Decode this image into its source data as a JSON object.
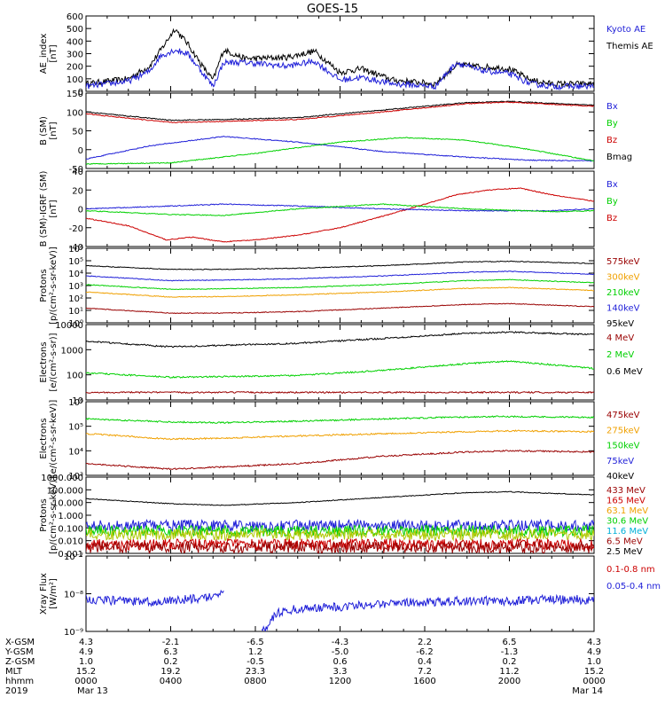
{
  "title": "GOES-15",
  "colors": {
    "axis": "#000000",
    "blue": "#1f1fd8",
    "red": "#cc0000",
    "green": "#00d000",
    "orange": "#f0a000",
    "darkred": "#990000",
    "cyan": "#00b0d8",
    "yellowgreen": "#b0c800",
    "black": "#000000"
  },
  "chart_data": [
    {
      "type": "line",
      "ylabel": [
        "AE_index",
        "[nT]"
      ],
      "ylim": [
        0,
        600
      ],
      "yticks": [
        "0",
        "100",
        "200",
        "300",
        "400",
        "500",
        "600"
      ],
      "legend": [
        {
          "name": "Kyoto AE",
          "color": "blue"
        },
        {
          "name": "Themis AE",
          "color": "black"
        }
      ],
      "series": [
        {
          "name": "Themis AE",
          "color": "black",
          "x": [
            0,
            2,
            3,
            3.5,
            4.2,
            4.8,
            5.5,
            6.0,
            6.5,
            7.5,
            9.5,
            10.8,
            12,
            13,
            14.5,
            16.5,
            17.5,
            18.5,
            20,
            21,
            22,
            24
          ],
          "y": [
            60,
            100,
            200,
            320,
            500,
            380,
            200,
            90,
            330,
            260,
            270,
            320,
            150,
            180,
            90,
            60,
            210,
            200,
            180,
            90,
            60,
            60
          ]
        },
        {
          "name": "Kyoto AE",
          "color": "blue",
          "x": [
            0,
            2,
            3,
            3.5,
            4.2,
            4.8,
            5.5,
            6.0,
            6.5,
            7.5,
            9.5,
            10.8,
            12,
            13,
            14.5,
            16.5,
            17.5,
            18.5,
            20,
            21,
            22,
            24
          ],
          "y": [
            40,
            80,
            160,
            280,
            330,
            300,
            150,
            40,
            230,
            230,
            200,
            240,
            90,
            110,
            60,
            40,
            230,
            170,
            140,
            60,
            40,
            40
          ]
        }
      ]
    },
    {
      "type": "line",
      "ylabel": [
        "B (SM)",
        "[nT]"
      ],
      "ylim": [
        -50,
        150
      ],
      "yticks": [
        "-50",
        "0",
        "50",
        "100",
        "150"
      ],
      "legend": [
        {
          "name": "Bx",
          "color": "blue"
        },
        {
          "name": "By",
          "color": "green"
        },
        {
          "name": "Bz",
          "color": "red"
        },
        {
          "name": "Bmag",
          "color": "black"
        }
      ],
      "series": [
        {
          "name": "Bmag",
          "color": "black",
          "x": [
            0,
            4,
            6.5,
            10,
            14,
            18,
            20,
            24
          ],
          "y": [
            100,
            78,
            80,
            85,
            105,
            125,
            128,
            118
          ]
        },
        {
          "name": "Bz",
          "color": "red",
          "x": [
            0,
            4,
            6.5,
            10,
            14,
            18,
            20,
            24
          ],
          "y": [
            95,
            72,
            75,
            80,
            100,
            122,
            126,
            115
          ]
        },
        {
          "name": "Bx",
          "color": "blue",
          "x": [
            0,
            3,
            6.5,
            10,
            14,
            18,
            21,
            24
          ],
          "y": [
            -25,
            10,
            35,
            20,
            -5,
            -20,
            -28,
            -30
          ]
        },
        {
          "name": "By",
          "color": "green",
          "x": [
            0,
            4,
            8,
            12,
            15,
            18,
            21,
            24
          ],
          "y": [
            -38,
            -35,
            -10,
            20,
            32,
            25,
            0,
            -30
          ]
        }
      ]
    },
    {
      "type": "line",
      "ylabel": [
        "B (SM)-IGRF (SM)",
        "[nT]"
      ],
      "ylim": [
        -40,
        40
      ],
      "yticks": [
        "-40",
        "-20",
        "0",
        "20",
        "40"
      ],
      "legend": [
        {
          "name": "Bx",
          "color": "blue"
        },
        {
          "name": "By",
          "color": "green"
        },
        {
          "name": "Bz",
          "color": "red"
        }
      ],
      "series": [
        {
          "name": "Bz",
          "color": "red",
          "x": [
            0,
            2,
            3.8,
            5,
            6.5,
            8,
            10,
            12,
            14,
            16,
            17.5,
            19,
            20.5,
            22,
            24
          ],
          "y": [
            -10,
            -18,
            -33,
            -30,
            -35,
            -33,
            -28,
            -20,
            -8,
            5,
            15,
            20,
            22,
            15,
            8
          ]
        },
        {
          "name": "Bx",
          "color": "blue",
          "x": [
            0,
            4,
            6.5,
            10,
            14,
            18,
            22,
            24
          ],
          "y": [
            0,
            3,
            5,
            3,
            0,
            -2,
            -2,
            0
          ]
        },
        {
          "name": "By",
          "color": "green",
          "x": [
            0,
            3,
            4,
            6.5,
            10,
            14,
            18,
            22,
            24
          ],
          "y": [
            -2,
            -5,
            -6,
            -7,
            0,
            5,
            0,
            -3,
            -2
          ]
        }
      ]
    },
    {
      "type": "line",
      "yscale": "log",
      "ylabel": [
        "Protons",
        "[p/(cm²-s-sr-keV)]"
      ],
      "ylim": [
        1,
        1000000
      ],
      "yticks": [
        "10⁰",
        "10¹",
        "10²",
        "10³",
        "10⁴",
        "10⁵",
        "10⁶"
      ],
      "legend": [
        {
          "name": "575keV",
          "color": "darkred"
        },
        {
          "name": "300keV",
          "color": "orange"
        },
        {
          "name": "210keV",
          "color": "green"
        },
        {
          "name": "140keV",
          "color": "blue"
        },
        {
          "name": "95keV",
          "color": "black"
        }
      ],
      "series": [
        {
          "name": "95keV",
          "color": "black",
          "x": [
            0,
            4,
            6.5,
            10,
            14,
            18,
            20,
            24
          ],
          "y": [
            40000,
            20000,
            20000,
            25000,
            40000,
            80000,
            90000,
            60000
          ]
        },
        {
          "name": "140keV",
          "color": "blue",
          "x": [
            0,
            4,
            6.5,
            10,
            14,
            18,
            20,
            24
          ],
          "y": [
            6000,
            2500,
            2800,
            3500,
            6000,
            12000,
            14000,
            8000
          ]
        },
        {
          "name": "210keV",
          "color": "green",
          "x": [
            0,
            4,
            6.5,
            10,
            14,
            18,
            20,
            24
          ],
          "y": [
            1200,
            500,
            550,
            700,
            1200,
            2500,
            3000,
            1700
          ]
        },
        {
          "name": "300keV",
          "color": "orange",
          "x": [
            0,
            4,
            6.5,
            10,
            14,
            18,
            20,
            24
          ],
          "y": [
            300,
            120,
            130,
            180,
            300,
            600,
            700,
            400
          ]
        },
        {
          "name": "575keV",
          "color": "darkred",
          "x": [
            0,
            4,
            6.5,
            10,
            14,
            18,
            20,
            24
          ],
          "y": [
            15,
            6,
            6,
            8,
            15,
            30,
            35,
            20
          ]
        }
      ]
    },
    {
      "type": "line",
      "yscale": "log",
      "ylabel": [
        "Electrons",
        "[e/(cm²-s-sr)]"
      ],
      "ylim": [
        10,
        10000
      ],
      "yticks": [
        "10",
        "100",
        "1000",
        "10000"
      ],
      "legend": [
        {
          "name": "4 MeV",
          "color": "darkred"
        },
        {
          "name": "2 MeV",
          "color": "green"
        },
        {
          "name": "0.6 MeV",
          "color": "black"
        }
      ],
      "series": [
        {
          "name": "0.6 MeV",
          "color": "black",
          "x": [
            0,
            4,
            6.5,
            10,
            14,
            18,
            20,
            24
          ],
          "y": [
            2200,
            1300,
            1500,
            1800,
            2800,
            4500,
            5000,
            4000
          ]
        },
        {
          "name": "2 MeV",
          "color": "green",
          "x": [
            0,
            4,
            6.5,
            10,
            14,
            18,
            20,
            24
          ],
          "y": [
            120,
            80,
            85,
            95,
            150,
            280,
            350,
            180
          ]
        },
        {
          "name": "4 MeV",
          "color": "darkred",
          "x": [
            0,
            6,
            12,
            18,
            24
          ],
          "y": [
            20,
            20,
            20,
            20,
            20
          ]
        }
      ]
    },
    {
      "type": "line",
      "yscale": "log",
      "ylabel": [
        "Electrons",
        "[e/(cm²-s-sr-keV)]"
      ],
      "ylim": [
        1000,
        1000000
      ],
      "yticks": [
        "10³",
        "10⁴",
        "10⁵",
        "10⁶"
      ],
      "legend": [
        {
          "name": "475keV",
          "color": "darkred"
        },
        {
          "name": "275keV",
          "color": "orange"
        },
        {
          "name": "150keV",
          "color": "green"
        },
        {
          "name": "75keV",
          "color": "blue"
        },
        {
          "name": "40keV",
          "color": "black"
        }
      ],
      "series": [
        {
          "name": "150keV",
          "color": "green",
          "x": [
            0,
            4,
            6.5,
            10,
            14,
            18,
            20,
            24
          ],
          "y": [
            200000,
            150000,
            140000,
            160000,
            200000,
            240000,
            250000,
            230000
          ]
        },
        {
          "name": "275keV",
          "color": "orange",
          "x": [
            0,
            4,
            6.5,
            10,
            14,
            18,
            20,
            24
          ],
          "y": [
            50000,
            30000,
            33000,
            40000,
            50000,
            60000,
            65000,
            60000
          ]
        },
        {
          "name": "475keV",
          "color": "darkred",
          "x": [
            0,
            4,
            6.5,
            10,
            14,
            18,
            20,
            24
          ],
          "y": [
            3000,
            1800,
            2200,
            3000,
            6000,
            9000,
            10000,
            9000
          ]
        }
      ]
    },
    {
      "type": "line",
      "yscale": "log",
      "ylabel": [
        "Protons",
        "[p/(cm²-s-sr-keV)]"
      ],
      "ylim": [
        0.001,
        1000
      ],
      "yticks": [
        "0.001",
        "0.010",
        "0.100",
        "1.000",
        "10.000",
        "100.000",
        "1000.000"
      ],
      "legend": [
        {
          "name": "433 MeV",
          "color": "darkred"
        },
        {
          "name": "165 MeV",
          "color": "red"
        },
        {
          "name": "63.1 MeV",
          "color": "orange"
        },
        {
          "name": "30.6 MeV",
          "color": "green"
        },
        {
          "name": "11.6 MeV",
          "color": "cyan"
        },
        {
          "name": "6.5 MeV",
          "color": "darkred"
        },
        {
          "name": "2.5 MeV",
          "color": "black"
        }
      ],
      "series": [
        {
          "name": "2.5 MeV",
          "color": "black",
          "x": [
            0,
            4,
            6.5,
            10,
            14,
            18,
            20,
            24
          ],
          "y": [
            20,
            8,
            6,
            10,
            25,
            60,
            70,
            40
          ]
        },
        {
          "name": "11.6 MeV",
          "color": "blue",
          "x": [
            0,
            24
          ],
          "y": [
            0.15,
            0.15
          ]
        },
        {
          "name": "30.6 MeV",
          "color": "green",
          "x": [
            0,
            24
          ],
          "y": [
            0.06,
            0.06
          ]
        },
        {
          "name": "63.1 MeV",
          "color": "yellowgreen",
          "x": [
            0,
            24
          ],
          "y": [
            0.03,
            0.03
          ]
        },
        {
          "name": "165 MeV",
          "color": "red",
          "x": [
            0,
            24
          ],
          "y": [
            0.005,
            0.005
          ]
        },
        {
          "name": "433 MeV",
          "color": "darkred",
          "x": [
            0,
            24
          ],
          "y": [
            0.003,
            0.003
          ]
        }
      ]
    },
    {
      "type": "line",
      "yscale": "log",
      "ylabel": [
        "Xray Flux",
        "[W/m²]"
      ],
      "ylim": [
        1e-09,
        1e-07
      ],
      "yticks": [
        "10⁻⁹",
        "10⁻⁸",
        "10⁻⁷"
      ],
      "legend": [
        {
          "name": "0.1-0.8 nm",
          "color": "red"
        },
        {
          "name": "0.05-0.4 nm",
          "color": "blue"
        }
      ],
      "series": [
        {
          "name": "0.05-0.4 nm",
          "color": "blue",
          "x": [
            0,
            3,
            6,
            6.5
          ],
          "y": [
            7e-09,
            6e-09,
            8e-09,
            1.3e-08
          ]
        },
        {
          "name": "0.05-0.4 nm",
          "color": "blue",
          "x": [
            8.3,
            9,
            10,
            12,
            14,
            16,
            18,
            20,
            22,
            24
          ],
          "y": [
            1e-09,
            3e-09,
            4e-09,
            4.5e-09,
            5.5e-09,
            6e-09,
            6.5e-09,
            6.5e-09,
            7e-09,
            7e-09
          ]
        }
      ]
    }
  ],
  "footer": {
    "row_labels": [
      "X-GSM",
      "Y-GSM",
      "Z-GSM",
      "MLT",
      "hhmm",
      "2019"
    ],
    "columns": [
      {
        "x": 0,
        "values": [
          "4.3",
          "4.9",
          "1.0",
          "15.2",
          "0000",
          "Mar 13"
        ]
      },
      {
        "x": 4,
        "values": [
          "-2.1",
          "6.3",
          "0.2",
          "19.2",
          "0400",
          ""
        ]
      },
      {
        "x": 8,
        "values": [
          "-6.5",
          "1.2",
          "-0.5",
          "23.3",
          "0800",
          ""
        ]
      },
      {
        "x": 12,
        "values": [
          "-4.3",
          "-5.0",
          "0.6",
          "3.3",
          "1200",
          ""
        ]
      },
      {
        "x": 16,
        "values": [
          "2.2",
          "-6.2",
          "0.4",
          "7.2",
          "1600",
          ""
        ]
      },
      {
        "x": 20,
        "values": [
          "6.5",
          "-1.3",
          "0.2",
          "11.2",
          "2000",
          ""
        ]
      },
      {
        "x": 24,
        "values": [
          "4.3",
          "4.9",
          "1.0",
          "15.2",
          "0000",
          "Mar 14"
        ]
      }
    ]
  }
}
